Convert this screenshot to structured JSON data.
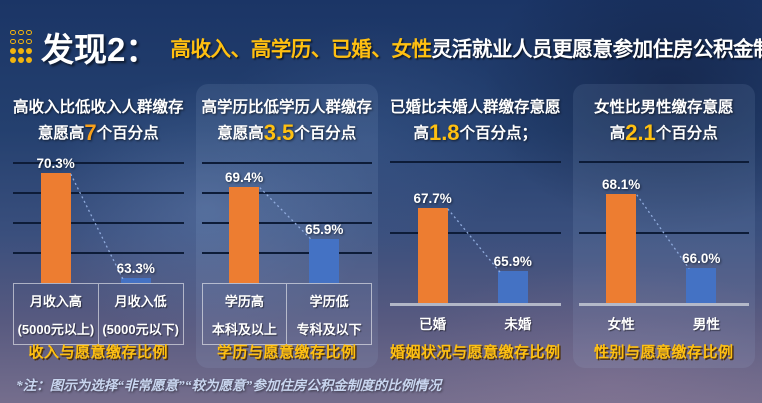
{
  "header": {
    "icon": "dot-grid-icon",
    "title": "发现2：",
    "highlight": "高收入、高学历、已婚、女性",
    "rest": "灵活就业人员更愿意参加住房公积金制度"
  },
  "colors": {
    "bar_high": "#ED7D31",
    "bar_low": "#4472C4",
    "caption": "#FFC011",
    "header_highlight": "#FFC011",
    "connector": "#8FAADC",
    "gridline": "#0D1C38"
  },
  "chart_data": [
    {
      "type": "bar",
      "title_line1": "高收入比低收入人群缴存",
      "title_pre": "意愿高",
      "title_highlight": "7",
      "title_post": "个百分点",
      "highlight_color": "#F7A01B",
      "categories": [
        [
          "月收入高",
          "(5000元以上)"
        ],
        [
          "月收入低",
          "(5000元以下)"
        ]
      ],
      "series": [
        {
          "name": "愿意缴存比例",
          "values": [
            70.3,
            63.3
          ]
        }
      ],
      "value_labels": [
        "70.3%",
        "63.3%"
      ],
      "ylim": [
        63,
        71.5
      ],
      "gridlines": [
        65,
        67,
        69,
        71
      ],
      "axis_style": "boxed",
      "card": false,
      "caption": "收入与愿意缴存比例"
    },
    {
      "type": "bar",
      "title_line1": "高学历比低学历人群缴存",
      "title_pre": "意愿高",
      "title_highlight": "3.5",
      "title_post": "个百分点",
      "highlight_color": "#FFC011",
      "categories": [
        [
          "学历高",
          "本科及以上"
        ],
        [
          "学历低",
          "专科及以下"
        ]
      ],
      "series": [
        {
          "name": "愿意缴存比例",
          "values": [
            69.4,
            65.9
          ]
        }
      ],
      "value_labels": [
        "69.4%",
        "65.9%"
      ],
      "ylim": [
        63,
        71.5
      ],
      "gridlines": [
        65,
        67,
        69,
        71
      ],
      "axis_style": "boxed",
      "card": true,
      "caption": "学历与愿意缴存比例"
    },
    {
      "type": "bar",
      "title_line1": "已婚比未婚人群缴存意愿",
      "title_pre": "高",
      "title_highlight": "1.8",
      "title_post": "个百分点；",
      "highlight_color": "#FFC011",
      "categories": [
        [
          "已婚"
        ],
        [
          "未婚"
        ]
      ],
      "series": [
        {
          "name": "愿意缴存比例",
          "values": [
            67.7,
            65.9
          ]
        }
      ],
      "value_labels": [
        "67.7%",
        "65.9%"
      ],
      "ylim": [
        65,
        69.2
      ],
      "gridlines": [
        67,
        69
      ],
      "axis_style": "baseline",
      "card": false,
      "caption": "婚姻状况与愿意缴存比例"
    },
    {
      "type": "bar",
      "title_line1": "女性比男性缴存意愿",
      "title_pre": "高",
      "title_highlight": "2.1",
      "title_post": "个百分点",
      "highlight_color": "#FFC011",
      "categories": [
        [
          "女性"
        ],
        [
          "男性"
        ]
      ],
      "series": [
        {
          "name": "愿意缴存比例",
          "values": [
            68.1,
            66.0
          ]
        }
      ],
      "value_labels": [
        "68.1%",
        "66.0%"
      ],
      "ylim": [
        65,
        69.2
      ],
      "gridlines": [
        67,
        69
      ],
      "axis_style": "baseline",
      "card": true,
      "caption": "性别与愿意缴存比例"
    }
  ],
  "footnote": "*注：图示为选择“非常愿意”“较为愿意”参加住房公积金制度的比例情况"
}
